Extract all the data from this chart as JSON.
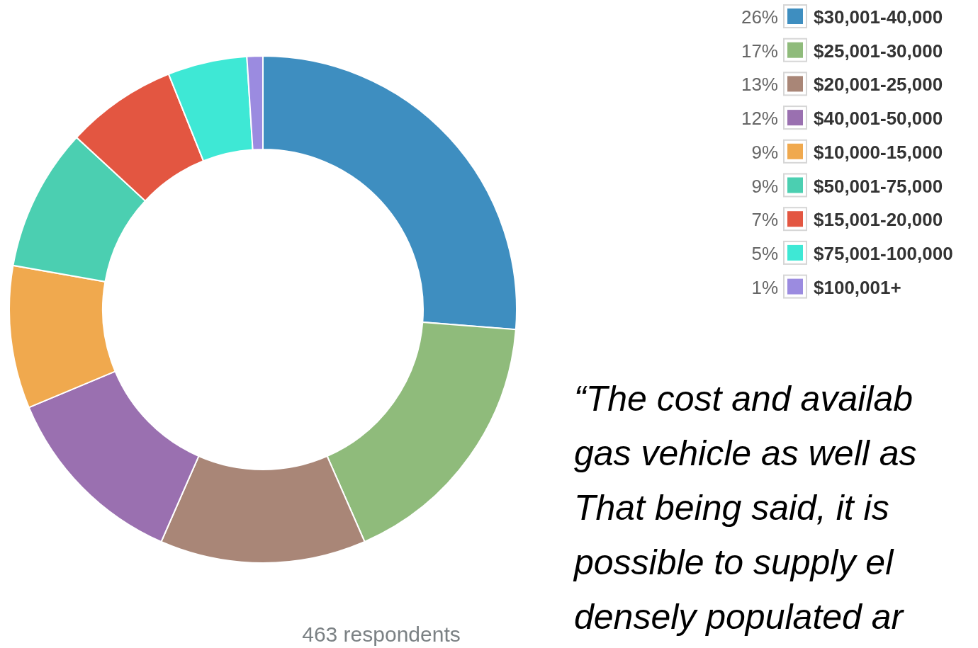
{
  "chart_data": {
    "type": "donut",
    "categories": [
      "$30,001-40,000",
      "$25,001-30,000",
      "$20,001-25,000",
      "$40,001-50,000",
      "$10,000-15,000",
      "$50,001-75,000",
      "$15,001-20,000",
      "$75,001-100,000",
      "$100,001+"
    ],
    "values": [
      26,
      17,
      13,
      12,
      9,
      9,
      7,
      5,
      1
    ],
    "value_labels": [
      "26%",
      "17%",
      "13%",
      "12%",
      "9%",
      "9%",
      "7%",
      "5%",
      "1%"
    ],
    "colors": [
      "#3e8ec0",
      "#8fbb7b",
      "#a98677",
      "#9a70b0",
      "#f0a94e",
      "#4bcfb1",
      "#e35641",
      "#3ee8d5",
      "#9b8be0"
    ],
    "legend": "top right",
    "annotations": [
      "463 respondents",
      "“The cost and availab",
      "gas vehicle as well as",
      "That being said, it is",
      "possible to supply el",
      "densely populated ar"
    ]
  }
}
